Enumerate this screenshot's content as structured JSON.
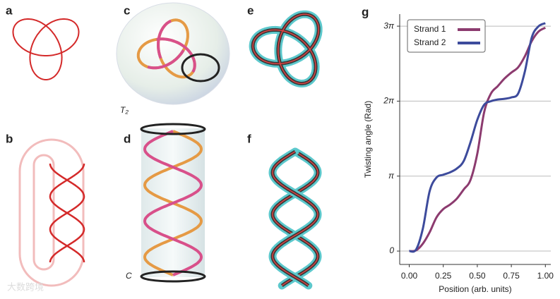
{
  "panel_labels": [
    "a",
    "b",
    "c",
    "d",
    "e",
    "f",
    "g"
  ],
  "annotations": {
    "c": "T₂",
    "d": "C"
  },
  "watermark": "大数跨境",
  "chart_data": {
    "type": "line",
    "xlabel": "Position (arb. units)",
    "ylabel": "Twisting angle (Rad)",
    "x": [
      0,
      0.05,
      0.1,
      0.15,
      0.2,
      0.25,
      0.3,
      0.35,
      0.4,
      0.45,
      0.5,
      0.55,
      0.6,
      0.65,
      0.7,
      0.75,
      0.8,
      0.85,
      0.9,
      0.95,
      1.0
    ],
    "series": [
      {
        "name": "Strand 1",
        "color": "#8c3b6f",
        "values": [
          0,
          0.03,
          0.31,
          0.79,
          1.41,
          1.76,
          1.95,
          2.2,
          2.58,
          2.98,
          4.08,
          5.81,
          6.6,
          6.91,
          7.23,
          7.48,
          7.7,
          8.17,
          8.8,
          9.2,
          9.36
        ]
      },
      {
        "name": "Strand 2",
        "color": "#3d4b9c",
        "values": [
          0,
          0.06,
          0.94,
          2.51,
          3.08,
          3.2,
          3.3,
          3.46,
          3.77,
          4.56,
          5.5,
          6.13,
          6.28,
          6.35,
          6.38,
          6.44,
          6.6,
          7.54,
          8.95,
          9.42,
          9.55
        ]
      }
    ],
    "xlim": [
      -0.07,
      1.04
    ],
    "ylim": [
      -0.56,
      9.93
    ],
    "xticks": [
      {
        "value": 0,
        "label": "0.00"
      },
      {
        "value": 0.25,
        "label": "0.25"
      },
      {
        "value": 0.5,
        "label": "0.50"
      },
      {
        "value": 0.75,
        "label": "0.75"
      },
      {
        "value": 1.0,
        "label": "1.00"
      }
    ],
    "yticks": [
      0,
      {
        "value": 3.1416,
        "label": "π"
      },
      {
        "value": 6.2832,
        "label": "2π"
      },
      {
        "value": 9.4248,
        "label": "3π"
      }
    ],
    "grid": true,
    "legend": "upper-left"
  }
}
